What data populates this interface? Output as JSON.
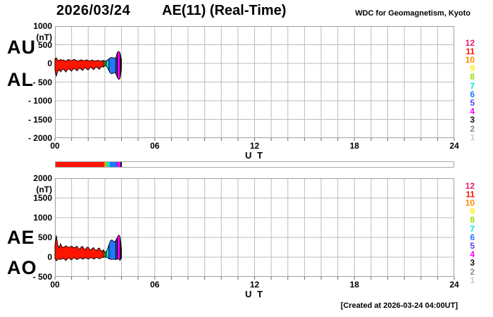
{
  "header": {
    "date": "2026/03/24",
    "title": "AE(11) (Real-Time)",
    "source": "WDC for Geomagnetism, Kyoto"
  },
  "footer": {
    "created": "[Created at 2026-03-24 04:00UT]"
  },
  "palette": {
    "12": "#ea1a77",
    "11": "#ff1400",
    "10": "#ff8c00",
    "9": "#ffee00",
    "8": "#8ee000",
    "7": "#00e4e4",
    "6": "#2277ff",
    "5": "#5a3ce8",
    "4": "#ff00ff",
    "3": "#111111",
    "2": "#8a8a8a",
    "1": "#cccccc"
  },
  "station_legend": [
    12,
    11,
    10,
    9,
    8,
    7,
    6,
    5,
    4,
    3,
    2,
    1
  ],
  "segments": [
    {
      "count": 11,
      "i0": 0,
      "i1": 35
    },
    {
      "count": 10,
      "i0": 35,
      "i1": 36
    },
    {
      "count": 8,
      "i0": 36,
      "i1": 37
    },
    {
      "count": 7,
      "i0": 37,
      "i1": 39
    },
    {
      "count": 6,
      "i0": 39,
      "i1": 44
    },
    {
      "count": 5,
      "i0": 44,
      "i1": 45
    },
    {
      "count": 4,
      "i0": 45,
      "i1": 47
    },
    {
      "count": 3,
      "i0": 47,
      "i1": 48
    }
  ],
  "chart_data": [
    {
      "type": "area",
      "label_top": "AU",
      "label_bottom": "AL",
      "unit": "(nT)",
      "ylim": [
        -2000,
        1000
      ],
      "yticks": [
        1000,
        500,
        0,
        -500,
        -1000,
        -1500,
        -2000
      ],
      "ytick_labels": [
        "1000",
        "500",
        "0",
        "- 500",
        "- 1000",
        "- 1500",
        "- 2000"
      ],
      "xlim": [
        0,
        24
      ],
      "xticks": [
        0,
        6,
        12,
        18,
        24
      ],
      "xtick_labels": [
        "00",
        "06",
        "12",
        "18",
        "24"
      ],
      "xlabel": "U T",
      "sample_step_hours": 0.0833333,
      "upper": [
        120,
        150,
        90,
        70,
        110,
        85,
        95,
        75,
        60,
        90,
        105,
        80,
        70,
        95,
        110,
        85,
        75,
        65,
        85,
        100,
        80,
        70,
        85,
        95,
        75,
        65,
        80,
        90,
        70,
        60,
        75,
        85,
        70,
        60,
        70,
        80,
        60,
        70,
        90,
        120,
        150,
        160,
        150,
        140,
        150,
        300,
        320,
        280,
        100
      ],
      "lower": [
        -180,
        -340,
        -220,
        -160,
        -230,
        -180,
        -150,
        -190,
        -230,
        -170,
        -140,
        -180,
        -210,
        -160,
        -130,
        -170,
        -200,
        -150,
        -120,
        -160,
        -190,
        -140,
        -110,
        -150,
        -180,
        -130,
        -100,
        -140,
        -170,
        -120,
        -90,
        -130,
        -160,
        -110,
        -80,
        -100,
        -60,
        -70,
        -120,
        -200,
        -260,
        -280,
        -260,
        -240,
        -280,
        -380,
        -430,
        -400,
        -150
      ]
    },
    {
      "type": "area",
      "label_top": "AE",
      "label_bottom": "AO",
      "unit": "(nT)",
      "ylim": [
        -500,
        2000
      ],
      "yticks": [
        2000,
        1500,
        1000,
        500,
        0,
        -500
      ],
      "ytick_labels": [
        "2000",
        "1500",
        "1000",
        "500",
        "0",
        "- 500"
      ],
      "xlim": [
        0,
        24
      ],
      "xticks": [
        0,
        6,
        12,
        18,
        24
      ],
      "xtick_labels": [
        "00",
        "06",
        "12",
        "18",
        "24"
      ],
      "xlabel": "U T",
      "sample_step_hours": 0.0833333,
      "upper": [
        300,
        550,
        310,
        230,
        340,
        265,
        245,
        265,
        290,
        260,
        245,
        260,
        280,
        255,
        240,
        255,
        275,
        215,
        205,
        260,
        270,
        210,
        195,
        245,
        255,
        195,
        180,
        230,
        240,
        180,
        165,
        215,
        230,
        170,
        150,
        180,
        120,
        140,
        210,
        320,
        410,
        440,
        410,
        380,
        430,
        500,
        560,
        520,
        200
      ],
      "lower": [
        -30,
        -95,
        -65,
        -45,
        -60,
        -48,
        -28,
        -58,
        -85,
        -40,
        -18,
        -50,
        -70,
        -33,
        -10,
        -43,
        -63,
        -43,
        -18,
        -30,
        -55,
        -35,
        -13,
        -28,
        -53,
        -33,
        -10,
        -25,
        -50,
        -30,
        -8,
        -23,
        -45,
        -25,
        -5,
        -10,
        5,
        0,
        -15,
        -40,
        -55,
        -60,
        -55,
        -50,
        -65,
        -40,
        -55,
        -75,
        -25
      ]
    }
  ]
}
